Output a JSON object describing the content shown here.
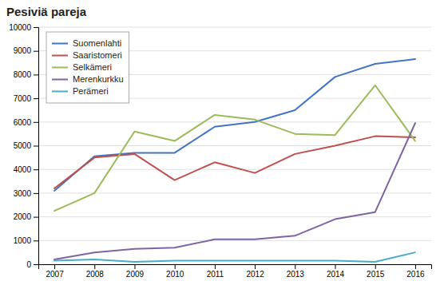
{
  "chart_data": {
    "type": "line",
    "title": "Pesiviä pareja",
    "x": [
      2007,
      2008,
      2009,
      2010,
      2011,
      2012,
      2013,
      2014,
      2015,
      2016
    ],
    "series": [
      {
        "name": "Suomenlahti",
        "color": "#4472C4",
        "values": [
          3100,
          4550,
          4700,
          4700,
          5800,
          6000,
          6500,
          7900,
          8450,
          8650
        ]
      },
      {
        "name": "Saaristomeri",
        "color": "#C0504D",
        "values": [
          3200,
          4500,
          4650,
          3550,
          4300,
          3850,
          4650,
          5000,
          5400,
          5350
        ]
      },
      {
        "name": "Selkämeri",
        "color": "#9BBB59",
        "values": [
          2250,
          3000,
          5600,
          5200,
          6300,
          6100,
          5500,
          5450,
          7550,
          5200
        ]
      },
      {
        "name": "Merenkurkku",
        "color": "#8064A2",
        "values": [
          200,
          500,
          650,
          700,
          1050,
          1050,
          1200,
          1900,
          2200,
          5950
        ]
      },
      {
        "name": "Perämeri",
        "color": "#4BACC6",
        "values": [
          150,
          200,
          100,
          150,
          150,
          150,
          150,
          150,
          100,
          500
        ]
      }
    ],
    "xlim": [
      2006.6,
      2016.4
    ],
    "xticks": [
      2007,
      2008,
      2009,
      2010,
      2011,
      2012,
      2013,
      2014,
      2015,
      2016
    ],
    "ylim": [
      0,
      10000
    ],
    "yticks": [
      0,
      1000,
      2000,
      3000,
      4000,
      5000,
      6000,
      7000,
      8000,
      9000,
      10000
    ],
    "grid": true,
    "legend": "top-left"
  }
}
